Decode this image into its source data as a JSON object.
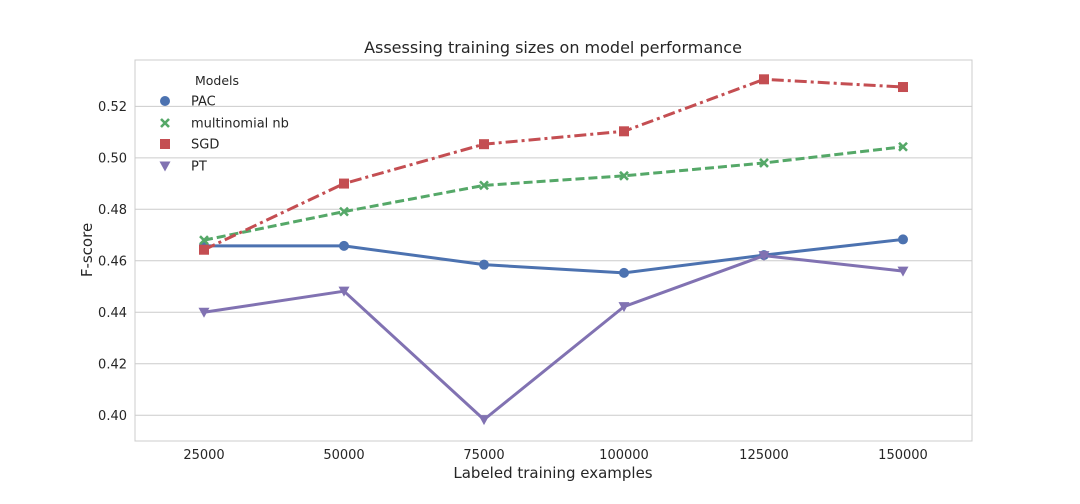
{
  "chart_data": {
    "type": "line",
    "title": "Assessing training sizes on model performance",
    "xlabel": "Labeled training examples",
    "ylabel": "F-score",
    "categories": [
      "25000",
      "50000",
      "75000",
      "100000",
      "125000",
      "150000"
    ],
    "ylim": [
      0.39,
      0.538
    ],
    "yticks": [
      0.4,
      0.42,
      0.44,
      0.46,
      0.48,
      0.5,
      0.52
    ],
    "ytick_labels": [
      "0.40",
      "0.42",
      "0.44",
      "0.46",
      "0.48",
      "0.50",
      "0.52"
    ],
    "grid": "horizontal",
    "legend": {
      "title": "Models",
      "placement": "top-left"
    },
    "series": [
      {
        "name": "PAC",
        "marker": "circle",
        "line_style": "solid",
        "color": "#4c72b0",
        "values": [
          0.4658,
          0.4658,
          0.4585,
          0.4553,
          0.4622,
          0.4683
        ]
      },
      {
        "name": "multinomial nb",
        "marker": "x",
        "line_style": "dashed",
        "color": "#55a868",
        "values": [
          0.468,
          0.4791,
          0.4893,
          0.493,
          0.498,
          0.5043
        ]
      },
      {
        "name": "SGD",
        "marker": "square",
        "line_style": "dashdot",
        "color": "#c44e52",
        "values": [
          0.4643,
          0.49,
          0.5053,
          0.5103,
          0.5305,
          0.5275
        ]
      },
      {
        "name": "PT",
        "marker": "triangle-down",
        "line_style": "solid",
        "color": "#8172b2",
        "values": [
          0.44,
          0.4482,
          0.3983,
          0.4422,
          0.462,
          0.456
        ]
      }
    ]
  }
}
